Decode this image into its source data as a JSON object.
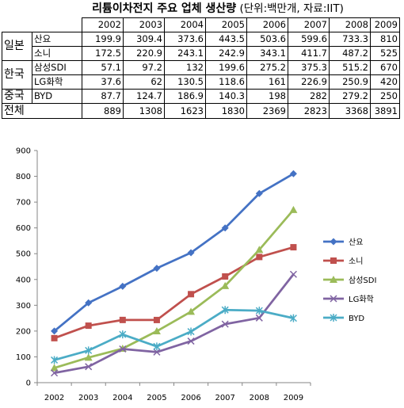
{
  "title": {
    "main": "리튬이차전지 주요 업체 생산량",
    "unit": "(단위:백만개, 자료:IIT)"
  },
  "table": {
    "years": [
      "2002",
      "2003",
      "2004",
      "2005",
      "2006",
      "2007",
      "2008",
      "2009"
    ],
    "groups": [
      {
        "country": "일본",
        "rows": [
          {
            "company": "산요",
            "values": [
              "199.9",
              "309.4",
              "373.6",
              "443.5",
              "503.6",
              "599.6",
              "733.3",
              "810"
            ]
          },
          {
            "company": "소니",
            "values": [
              "172.5",
              "220.9",
              "243.1",
              "242.9",
              "343.1",
              "411.7",
              "487.2",
              "525"
            ]
          }
        ]
      },
      {
        "country": "한국",
        "rows": [
          {
            "company": "삼성SDI",
            "values": [
              "57.1",
              "97.2",
              "132",
              "199.6",
              "275.2",
              "375.3",
              "515.2",
              "670"
            ]
          },
          {
            "company": "LG화학",
            "values": [
              "37.6",
              "62",
              "130.5",
              "118.6",
              "161",
              "226.9",
              "250.9",
              "420"
            ]
          }
        ]
      },
      {
        "country": "중국",
        "rows": [
          {
            "company": "BYD",
            "values": [
              "87.7",
              "124.7",
              "186.9",
              "140.3",
              "198",
              "282",
              "279.2",
              "250"
            ]
          }
        ]
      }
    ],
    "total": {
      "label": "전체",
      "values": [
        "889",
        "1308",
        "1623",
        "1830",
        "2369",
        "2823",
        "3368",
        "3891"
      ]
    }
  },
  "chart_data": {
    "type": "line",
    "x": [
      "2002",
      "2003",
      "2004",
      "2005",
      "2006",
      "2007",
      "2008",
      "2009"
    ],
    "ylim": [
      0,
      900
    ],
    "yticks": [
      0,
      100,
      200,
      300,
      400,
      500,
      600,
      700,
      800,
      900
    ],
    "grid": false,
    "legend_position": "right",
    "series": [
      {
        "name": "산요",
        "color": "#4472C4",
        "marker": "diamond",
        "values": [
          199.9,
          309.4,
          373.6,
          443.5,
          503.6,
          599.6,
          733.3,
          810
        ]
      },
      {
        "name": "소니",
        "color": "#C0504D",
        "marker": "square",
        "values": [
          172.5,
          220.9,
          243.1,
          242.9,
          343.1,
          411.7,
          487.2,
          525
        ]
      },
      {
        "name": "삼성SDI",
        "color": "#9BBB59",
        "marker": "triangle",
        "values": [
          57.1,
          97.2,
          132,
          199.6,
          275.2,
          375.3,
          515.2,
          670
        ]
      },
      {
        "name": "LG화학",
        "color": "#8064A2",
        "marker": "x",
        "values": [
          37.6,
          62,
          130.5,
          118.6,
          161,
          226.9,
          250.9,
          420
        ]
      },
      {
        "name": "BYD",
        "color": "#4BACC6",
        "marker": "star",
        "values": [
          87.7,
          124.7,
          186.9,
          140.3,
          198,
          282,
          279.2,
          250
        ]
      }
    ]
  }
}
